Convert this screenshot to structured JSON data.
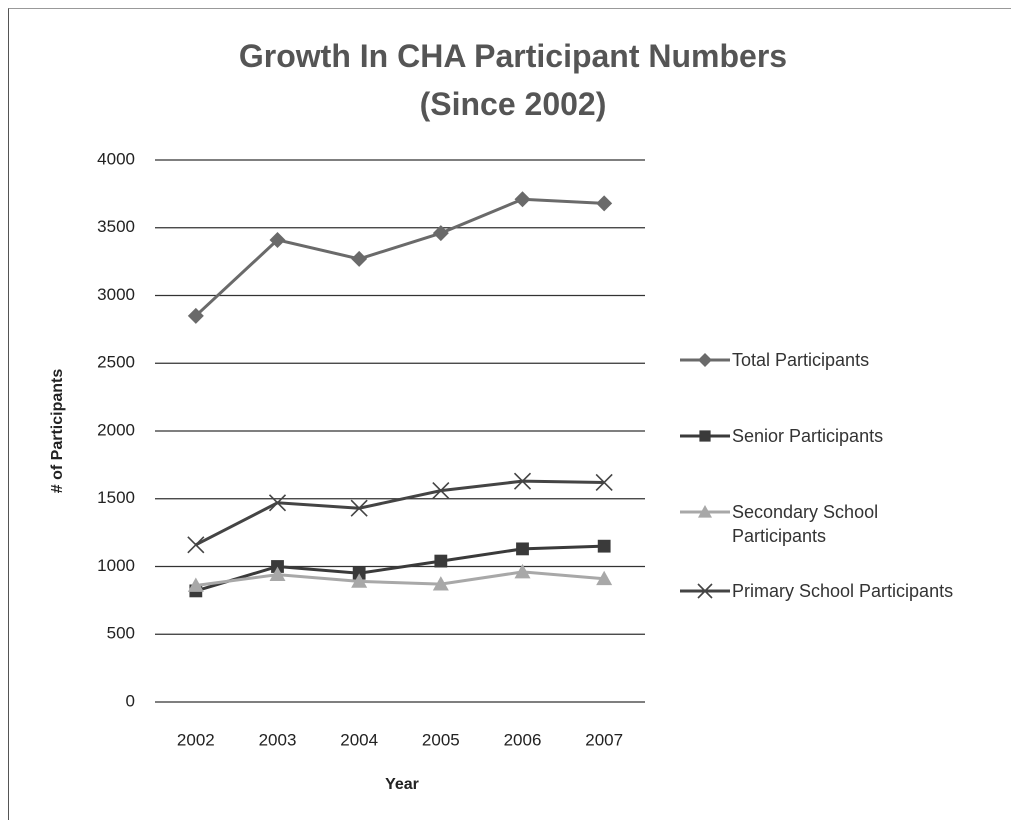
{
  "chart_data": {
    "type": "line",
    "title": "Growth In CHA Participant Numbers (Since 2002)",
    "x_label": "Year",
    "y_label": "# of Participants",
    "categories": [
      "2002",
      "2003",
      "2004",
      "2005",
      "2006",
      "2007"
    ],
    "series": [
      {
        "name": "Total Participants",
        "color": "#6a6a6a",
        "marker": "diamond",
        "values": [
          2850,
          3410,
          3270,
          3460,
          3710,
          3680
        ]
      },
      {
        "name": "Senior Participants",
        "color": "#3a3a3a",
        "marker": "square",
        "values": [
          820,
          1000,
          950,
          1040,
          1130,
          1150
        ]
      },
      {
        "name": "Secondary School Participants",
        "color": "#a8a8a8",
        "marker": "triangle",
        "values": [
          860,
          940,
          890,
          870,
          960,
          910
        ]
      },
      {
        "name": "Primary School Participants",
        "color": "#444444",
        "marker": "x",
        "values": [
          1160,
          1470,
          1430,
          1560,
          1630,
          1620
        ]
      }
    ],
    "ylim": [
      0,
      4000
    ],
    "yticks": [
      0,
      500,
      1000,
      1500,
      2000,
      2500,
      3000,
      3500,
      4000
    ],
    "grid": true,
    "legend": "right"
  }
}
